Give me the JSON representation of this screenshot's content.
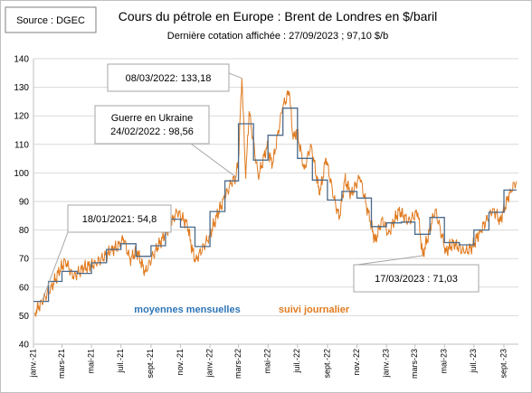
{
  "chart_data": {
    "type": "line",
    "source_label": "Source : DGEC",
    "title": "Cours du pétrole en Europe : Brent de Londres en $/baril",
    "subtitle": "Dernière cotation affichée : 27/09/2023 ; 97,10 $/b",
    "ylim": [
      40,
      140
    ],
    "y_ticks": [
      40,
      50,
      60,
      70,
      80,
      90,
      100,
      110,
      120,
      130,
      140
    ],
    "x_ticks": [
      "janv.-21",
      "mars-21",
      "mai-21",
      "juil.-21",
      "sept.-21",
      "nov.-21",
      "janv.-22",
      "mars-22",
      "mai-22",
      "juil.-22",
      "sept.-22",
      "nov.-22",
      "janv.-23",
      "mars-23",
      "mai-23",
      "juil.-23",
      "sept.-23"
    ],
    "grid": true,
    "series": [
      {
        "name": "moyennes mensuelles",
        "color": "#4a6a8a",
        "label_color": "#2e75b6",
        "step": true,
        "months": [
          "2021-01",
          "2021-02",
          "2021-03",
          "2021-04",
          "2021-05",
          "2021-06",
          "2021-07",
          "2021-08",
          "2021-09",
          "2021-10",
          "2021-11",
          "2021-12",
          "2022-01",
          "2022-02",
          "2022-03",
          "2022-04",
          "2022-05",
          "2022-06",
          "2022-07",
          "2022-08",
          "2022-09",
          "2022-10",
          "2022-11",
          "2022-12",
          "2023-01",
          "2023-02",
          "2023-03",
          "2023-04",
          "2023-05",
          "2023-06",
          "2023-07",
          "2023-08",
          "2023-09"
        ],
        "values": [
          55,
          62,
          65.5,
          64.8,
          68.5,
          73.2,
          75.2,
          70.8,
          74.5,
          83.8,
          81,
          74.2,
          86.5,
          97.2,
          117.2,
          104.5,
          113.2,
          122.7,
          105.1,
          97.5,
          90.5,
          93.5,
          91.2,
          81.2,
          82.5,
          82.8,
          78.5,
          84.4,
          75.6,
          74.8,
          80,
          86.2,
          94
        ]
      },
      {
        "name": "suivi journalier",
        "color": "#e07b20",
        "label_color": "#e07b20",
        "anchors": [
          [
            "2021-01-04",
            51.1
          ],
          [
            "2021-01-18",
            54.8
          ],
          [
            "2021-02-05",
            59.3
          ],
          [
            "2021-02-25",
            66.1
          ],
          [
            "2021-03-08",
            69.4
          ],
          [
            "2021-03-24",
            63.5
          ],
          [
            "2021-04-15",
            66.7
          ],
          [
            "2021-05-10",
            68.3
          ],
          [
            "2021-06-10",
            72.5
          ],
          [
            "2021-06-30",
            75.1
          ],
          [
            "2021-07-06",
            77.2
          ],
          [
            "2021-07-20",
            69.4
          ],
          [
            "2021-08-02",
            72.9
          ],
          [
            "2021-08-20",
            65.2
          ],
          [
            "2021-09-10",
            72.8
          ],
          [
            "2021-09-30",
            78.5
          ],
          [
            "2021-10-25",
            86.4
          ],
          [
            "2021-11-15",
            82.1
          ],
          [
            "2021-11-26",
            72.7
          ],
          [
            "2021-12-02",
            69.2
          ],
          [
            "2021-12-31",
            77.8
          ],
          [
            "2022-01-14",
            84.5
          ],
          [
            "2022-01-31",
            91.2
          ],
          [
            "2022-02-14",
            96.5
          ],
          [
            "2022-02-24",
            98.56
          ],
          [
            "2022-03-01",
            104.9
          ],
          [
            "2022-03-08",
            133.18
          ],
          [
            "2022-03-16",
            98.0
          ],
          [
            "2022-03-23",
            121.6
          ],
          [
            "2022-04-11",
            98.5
          ],
          [
            "2022-04-29",
            109.3
          ],
          [
            "2022-05-10",
            102.5
          ],
          [
            "2022-05-31",
            122.8
          ],
          [
            "2022-06-14",
            128.5
          ],
          [
            "2022-06-22",
            111.7
          ],
          [
            "2022-06-30",
            114.8
          ],
          [
            "2022-07-15",
            101.2
          ],
          [
            "2022-07-29",
            110.0
          ],
          [
            "2022-08-16",
            92.3
          ],
          [
            "2022-08-29",
            105.1
          ],
          [
            "2022-09-15",
            90.8
          ],
          [
            "2022-09-26",
            84.1
          ],
          [
            "2022-10-07",
            97.9
          ],
          [
            "2022-10-20",
            92.4
          ],
          [
            "2022-11-07",
            98.6
          ],
          [
            "2022-11-28",
            83.2
          ],
          [
            "2022-12-09",
            76.1
          ],
          [
            "2022-12-23",
            83.9
          ],
          [
            "2023-01-05",
            78.7
          ],
          [
            "2023-01-27",
            86.9
          ],
          [
            "2023-02-15",
            83.0
          ],
          [
            "2023-03-07",
            86.2
          ],
          [
            "2023-03-17",
            71.03
          ],
          [
            "2023-03-31",
            79.8
          ],
          [
            "2023-04-12",
            87.2
          ],
          [
            "2023-05-04",
            72.5
          ],
          [
            "2023-05-19",
            75.6
          ],
          [
            "2023-06-12",
            72.1
          ],
          [
            "2023-06-28",
            74.2
          ],
          [
            "2023-07-14",
            79.6
          ],
          [
            "2023-08-10",
            87.5
          ],
          [
            "2023-08-24",
            83.2
          ],
          [
            "2023-09-15",
            93.9
          ],
          [
            "2023-09-27",
            97.1
          ]
        ]
      }
    ],
    "annotations": [
      {
        "text": "18/01/2021: 54,8",
        "date": "2021-01-18",
        "value": 54.8
      },
      {
        "text": "Guerre en Ukraine",
        "text2": "24/02/2022 : 98,56",
        "date": "2022-02-24",
        "value": 98.56
      },
      {
        "text": "08/03/2022: 133,18",
        "date": "2022-03-08",
        "value": 133.18
      },
      {
        "text": "17/03/2023 : 71,03",
        "date": "2023-03-17",
        "value": 71.03
      }
    ]
  }
}
